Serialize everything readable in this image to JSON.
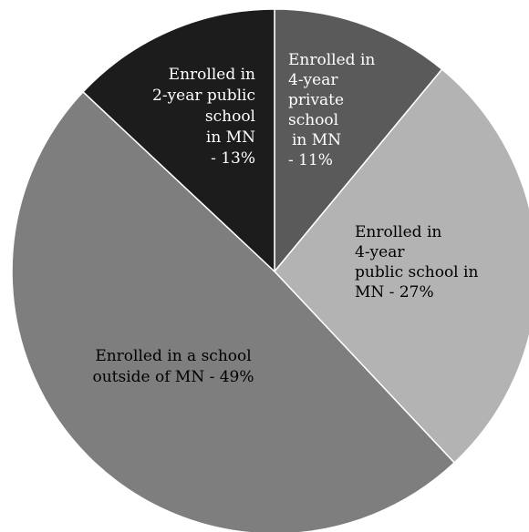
{
  "chart_data": {
    "type": "pie",
    "start": "top, clockwise",
    "slices": [
      {
        "value": 11,
        "label_lines": [
          "Enrolled in",
          "4-year",
          "private",
          "school",
          "in MN",
          "- 11%"
        ],
        "color": "#5a5a5a",
        "text_color": "#ffffff"
      },
      {
        "value": 27,
        "label_lines": [
          "Enrolled in",
          "4-year",
          "public school in",
          "MN  - 27%"
        ],
        "color": "#b3b3b3",
        "text_color": "#000000"
      },
      {
        "value": 49,
        "label_lines": [
          "Enrolled in a school",
          "outside of MN - 49%"
        ],
        "color": "#7e7e7e",
        "text_color": "#000000"
      },
      {
        "value": 13,
        "label_lines": [
          "Enrolled in",
          "2-year public",
          "school",
          "in MN",
          "- 13%"
        ],
        "color": "#1c1c1c",
        "text_color": "#ffffff"
      }
    ]
  }
}
